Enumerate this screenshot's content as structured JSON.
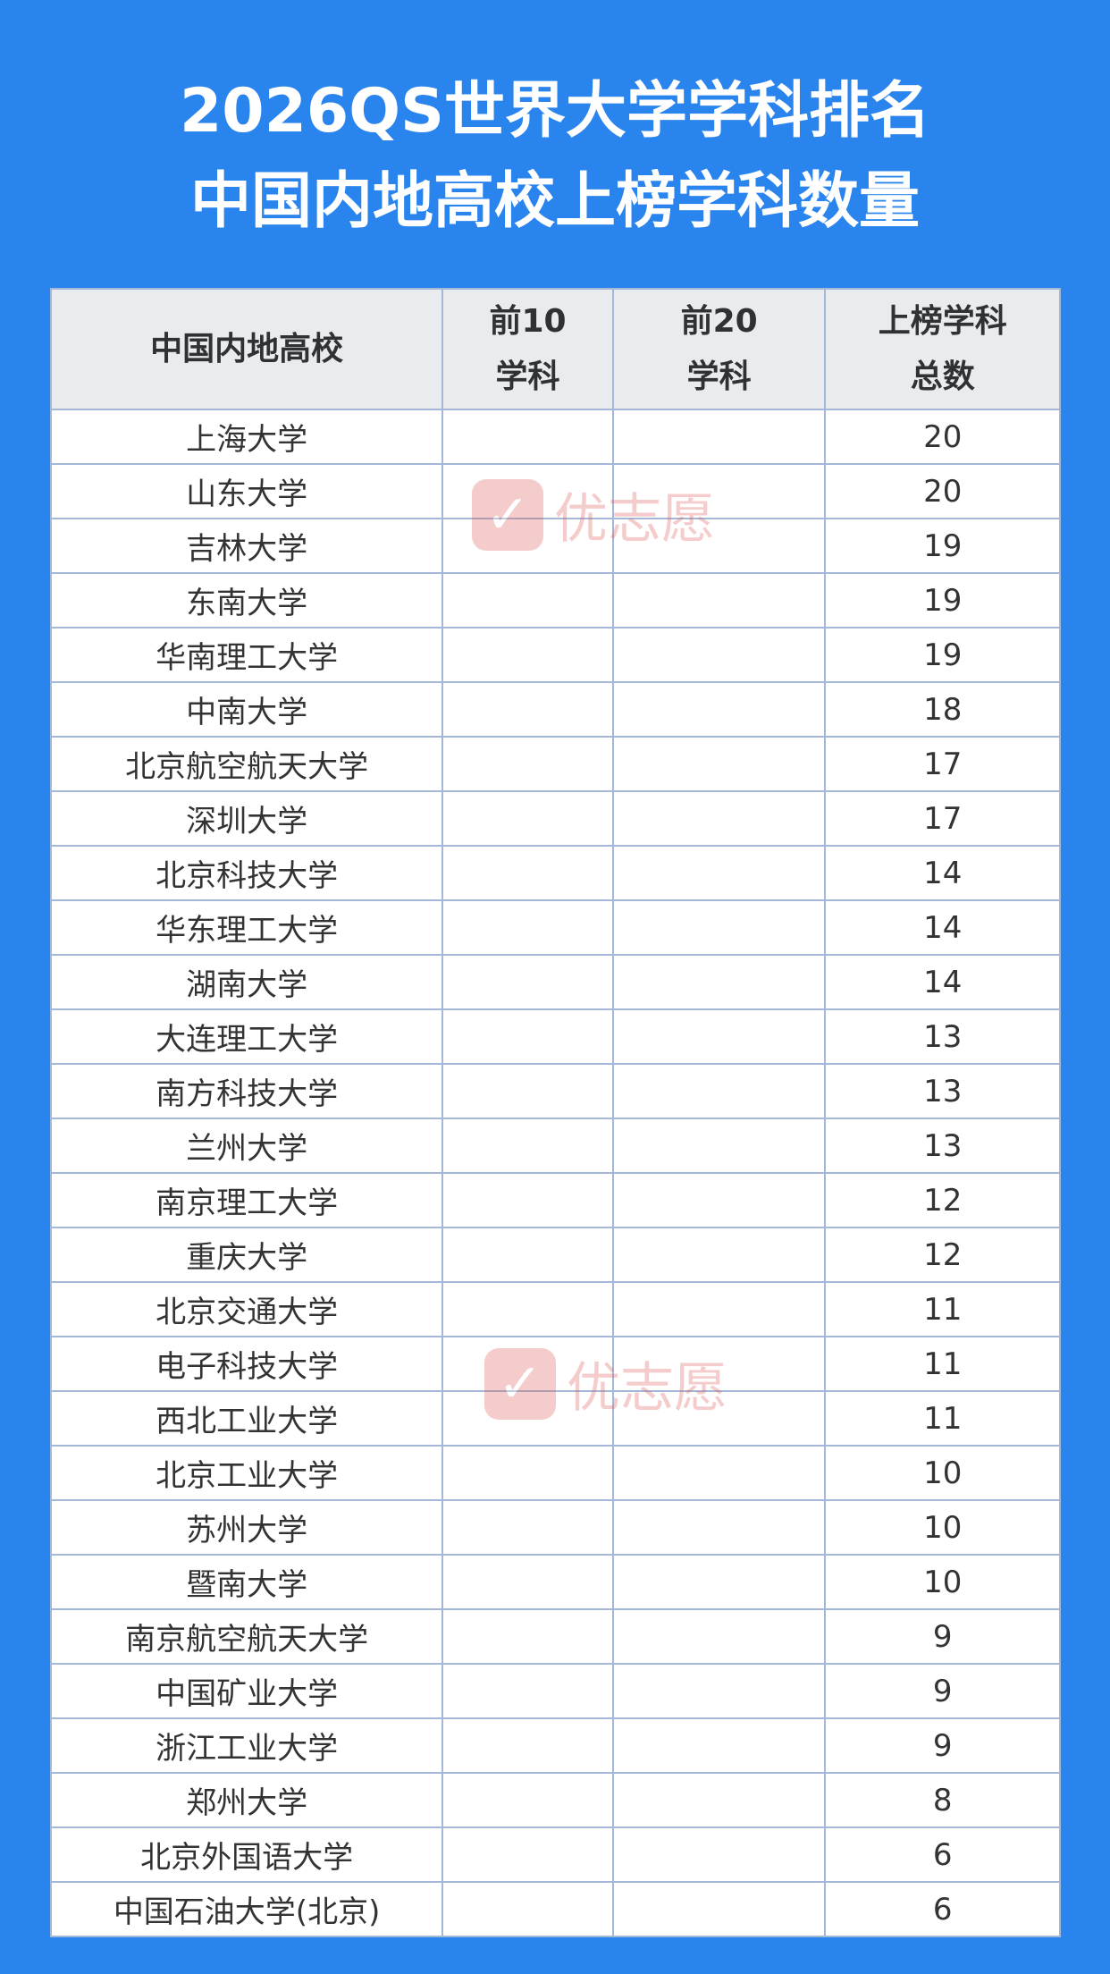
{
  "title": {
    "line1": "2026QS世界大学学科排名",
    "line2": "中国内地高校上榜学科数量"
  },
  "table": {
    "headers": [
      "中国内地高校",
      "前10\n学科",
      "前20\n学科",
      "上榜学科\n总数"
    ],
    "rows": [
      [
        "上海大学",
        "",
        "",
        "20"
      ],
      [
        "山东大学",
        "",
        "",
        "20"
      ],
      [
        "吉林大学",
        "",
        "",
        "19"
      ],
      [
        "东南大学",
        "",
        "",
        "19"
      ],
      [
        "华南理工大学",
        "",
        "",
        "19"
      ],
      [
        "中南大学",
        "",
        "",
        "18"
      ],
      [
        "北京航空航天大学",
        "",
        "",
        "17"
      ],
      [
        "深圳大学",
        "",
        "",
        "17"
      ],
      [
        "北京科技大学",
        "",
        "",
        "14"
      ],
      [
        "华东理工大学",
        "",
        "",
        "14"
      ],
      [
        "湖南大学",
        "",
        "",
        "14"
      ],
      [
        "大连理工大学",
        "",
        "",
        "13"
      ],
      [
        "南方科技大学",
        "",
        "",
        "13"
      ],
      [
        "兰州大学",
        "",
        "",
        "13"
      ],
      [
        "南京理工大学",
        "",
        "",
        "12"
      ],
      [
        "重庆大学",
        "",
        "",
        "12"
      ],
      [
        "北京交通大学",
        "",
        "",
        "11"
      ],
      [
        "电子科技大学",
        "",
        "",
        "11"
      ],
      [
        "西北工业大学",
        "",
        "",
        "11"
      ],
      [
        "北京工业大学",
        "",
        "",
        "10"
      ],
      [
        "苏州大学",
        "",
        "",
        "10"
      ],
      [
        "暨南大学",
        "",
        "",
        "10"
      ],
      [
        "南京航空航天大学",
        "",
        "",
        "9"
      ],
      [
        "中国矿业大学",
        "",
        "",
        "9"
      ],
      [
        "浙江工业大学",
        "",
        "",
        "9"
      ],
      [
        "郑州大学",
        "",
        "",
        "8"
      ],
      [
        "北京外国语大学",
        "",
        "",
        "6"
      ],
      [
        "中国石油大学(北京)",
        "",
        "",
        "6"
      ]
    ]
  },
  "watermark": {
    "text": "优志愿",
    "icon": "checkmark-icon"
  },
  "colors": {
    "background": "#2a84ee",
    "header_bg": "#e9ebee",
    "border": "#a3b8d6",
    "watermark": "#e05a5a"
  }
}
